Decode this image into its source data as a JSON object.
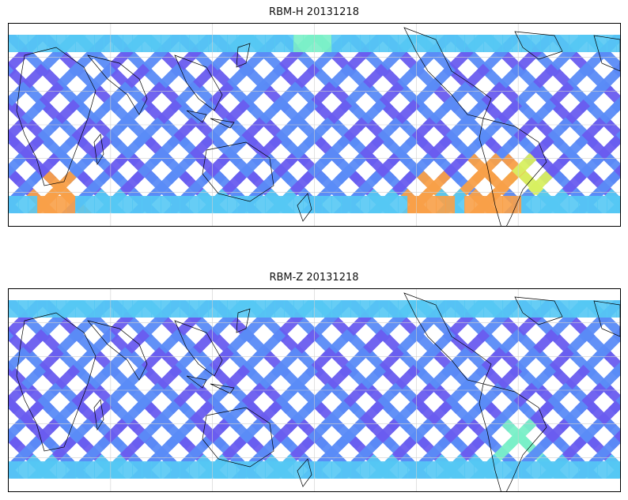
{
  "figure": {
    "panels": [
      {
        "title": "RBM-H 20131218",
        "product": "RBM-H",
        "date": "20131218",
        "colormap": [
          "#6a5cf0",
          "#5a8cf7",
          "#55c8f4",
          "#7af0c8",
          "#d8f060",
          "#f8a048",
          "#f25a5a"
        ],
        "lat_range": [
          -60,
          60
        ],
        "lon_range": [
          -180,
          180
        ],
        "high_regions": [
          {
            "lon": [
              -165,
              -140
            ],
            "lat": [
              -55,
              -35
            ],
            "level": 0.85
          },
          {
            "lon": [
              55,
              80
            ],
            "lat": [
              -55,
              -40
            ],
            "level": 0.9
          },
          {
            "lon": [
              90,
              120
            ],
            "lat": [
              -55,
              -30
            ],
            "level": 0.8
          },
          {
            "lon": [
              -10,
              10
            ],
            "lat": [
              50,
              58
            ],
            "level": 0.55
          },
          {
            "lon": [
              110,
              135
            ],
            "lat": [
              -50,
              -20
            ],
            "level": 0.6
          }
        ]
      },
      {
        "title": "RBM-Z 20131218",
        "product": "RBM-Z",
        "date": "20131218",
        "colormap": [
          "#6a5cf0",
          "#5a8cf7",
          "#55c8f4",
          "#7af0c8",
          "#d8f060",
          "#f8a048",
          "#f25a5a"
        ],
        "lat_range": [
          -60,
          60
        ],
        "lon_range": [
          -180,
          180
        ],
        "high_regions": [
          {
            "lon": [
              110,
              130
            ],
            "lat": [
              -45,
              -20
            ],
            "level": 0.45
          },
          {
            "lon": [
              -175,
              -150
            ],
            "lat": [
              -55,
              -45
            ],
            "level": 0.35
          },
          {
            "lon": [
              80,
              110
            ],
            "lat": [
              -55,
              -45
            ],
            "level": 0.3
          }
        ]
      }
    ]
  }
}
